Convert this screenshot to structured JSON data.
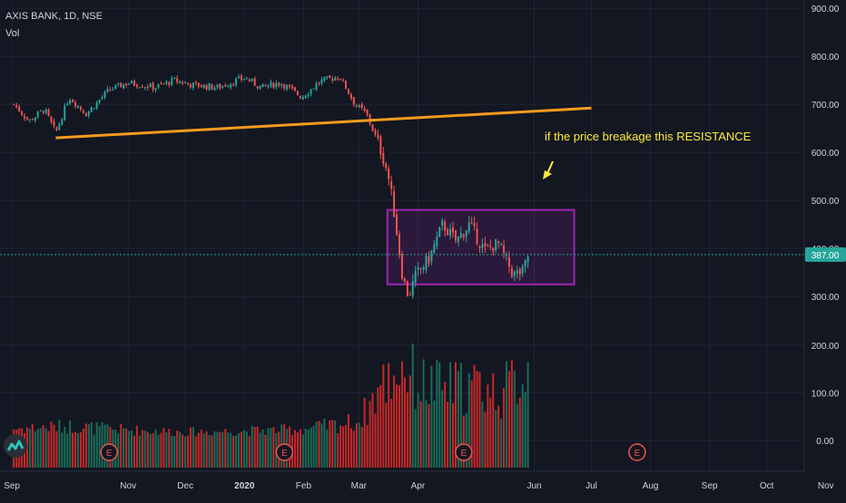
{
  "header": {
    "symbol": "AXIS BANK, 1D, NSE",
    "indicator": "Vol"
  },
  "colors": {
    "background": "#131722",
    "grid": "#1f2433",
    "up": "#26a69a",
    "down": "#ef5350",
    "vol_up": "#1b6b57",
    "vol_down": "#c62828",
    "trendline": "#f59b1e",
    "box_border": "#9c27b0",
    "box_fill": "rgba(156,39,176,0.18)",
    "price_line": "#26a69a",
    "annotation": "#ffeb3b",
    "earnings": "#ef5350"
  },
  "price_label": "387.00",
  "annotation": {
    "text": "if the price breakage this RESISTANCE",
    "arrow": "yellow-arrow"
  },
  "earnings_label": "E",
  "chart_data": {
    "type": "candlestick",
    "yticks": [
      "900.00",
      "800.00",
      "700.00",
      "600.00",
      "500.00",
      "400.00",
      "300.00",
      "200.00",
      "100.00",
      "0.00"
    ],
    "xticks": [
      "Sep",
      "Nov",
      "Dec",
      "2020",
      "Feb",
      "Mar",
      "Apr",
      "Jun",
      "Jul",
      "Aug",
      "Sep",
      "Oct",
      "Nov"
    ],
    "last_price": 387,
    "price_path": [
      [
        "2019-09-02",
        700
      ],
      [
        "2019-09-10",
        665
      ],
      [
        "2019-09-18",
        690
      ],
      [
        "2019-09-24",
        640
      ],
      [
        "2019-10-01",
        715
      ],
      [
        "2019-10-10",
        680
      ],
      [
        "2019-10-22",
        730
      ],
      [
        "2019-11-01",
        745
      ],
      [
        "2019-11-15",
        735
      ],
      [
        "2019-11-25",
        750
      ],
      [
        "2019-12-05",
        740
      ],
      [
        "2019-12-18",
        735
      ],
      [
        "2020-01-01",
        755
      ],
      [
        "2020-01-10",
        735
      ],
      [
        "2020-01-20",
        745
      ],
      [
        "2020-01-31",
        715
      ],
      [
        "2020-02-10",
        748
      ],
      [
        "2020-02-20",
        758
      ],
      [
        "2020-02-28",
        700
      ],
      [
        "2020-03-05",
        680
      ],
      [
        "2020-03-12",
        610
      ],
      [
        "2020-03-16",
        560
      ],
      [
        "2020-03-19",
        490
      ],
      [
        "2020-03-24",
        340
      ],
      [
        "2020-03-27",
        300
      ],
      [
        "2020-03-31",
        345
      ],
      [
        "2020-04-07",
        380
      ],
      [
        "2020-04-14",
        450
      ],
      [
        "2020-04-21",
        415
      ],
      [
        "2020-04-28",
        450
      ],
      [
        "2020-05-06",
        395
      ],
      [
        "2020-05-13",
        410
      ],
      [
        "2020-05-21",
        345
      ],
      [
        "2020-05-26",
        350
      ],
      [
        "2020-05-29",
        387
      ]
    ],
    "volume_path": [
      [
        "2019-09-02",
        25
      ],
      [
        "2019-10-01",
        30
      ],
      [
        "2019-11-01",
        22
      ],
      [
        "2019-12-01",
        18
      ],
      [
        "2020-01-01",
        20
      ],
      [
        "2020-02-01",
        24
      ],
      [
        "2020-03-01",
        40
      ],
      [
        "2020-03-12",
        110
      ],
      [
        "2020-03-24",
        160
      ],
      [
        "2020-04-01",
        120
      ],
      [
        "2020-04-15",
        110
      ],
      [
        "2020-05-01",
        115
      ],
      [
        "2020-05-15",
        100
      ],
      [
        "2020-05-29",
        150
      ]
    ],
    "trendline": {
      "start": [
        "2019-09-24",
        630
      ],
      "end": [
        "2020-07-01",
        692
      ]
    },
    "box": {
      "start": "2020-03-16",
      "end": "2020-06-22",
      "high": 480,
      "low": 325
    },
    "earnings": [
      "2019-10-22",
      "2020-01-22",
      "2020-04-25",
      "2020-07-25"
    ]
  }
}
